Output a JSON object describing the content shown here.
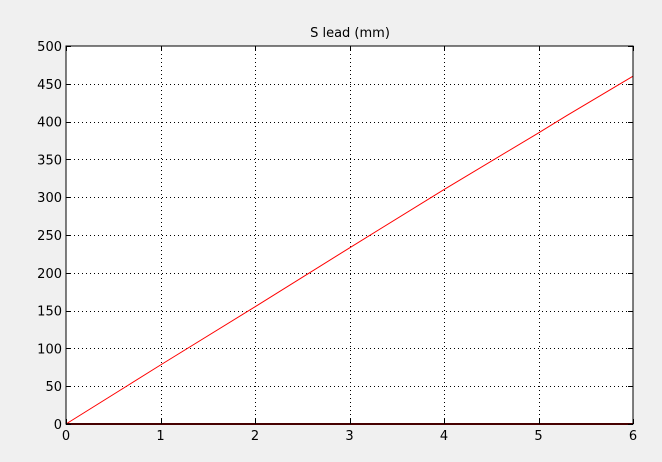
{
  "chart_data": {
    "type": "line",
    "title": "S lead (mm)",
    "xlabel": "",
    "ylabel": "",
    "xlim": [
      0,
      6
    ],
    "ylim": [
      0,
      500
    ],
    "x_ticks": [
      "0",
      "1",
      "2",
      "3",
      "4",
      "5",
      "6"
    ],
    "y_ticks": [
      "0",
      "50",
      "100",
      "150",
      "200",
      "250",
      "300",
      "350",
      "400",
      "450",
      "500"
    ],
    "grid": true,
    "legend": "none",
    "background_color": "#f0f0f0",
    "plot_background_color": "#ffffff",
    "series": [
      {
        "color": "#ff0000",
        "x": [
          0,
          1,
          2,
          3,
          4,
          5,
          5.3,
          6
        ],
        "y": [
          0,
          78,
          155,
          233,
          310,
          385,
          408,
          460
        ]
      },
      {
        "color": "#8b0000",
        "x": [
          0,
          6
        ],
        "y": [
          0,
          0
        ]
      }
    ]
  }
}
